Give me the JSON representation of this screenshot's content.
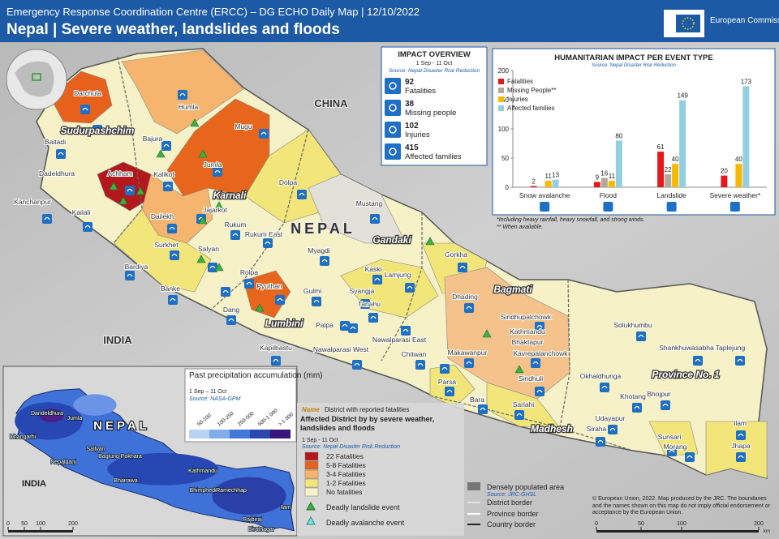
{
  "header": {
    "supertitle": "Emergency Response Coordination Centre (ERCC) – DG ECHO Daily Map | 12/10/2022",
    "title": "Nepal | Severe weather, landslides and floods",
    "logo_text": "European Commission"
  },
  "impact_overview": {
    "title": "IMPACT OVERVIEW",
    "period": "1 Sep - 11 Oct",
    "source": "Source: Nepal Disaster Risk Reduction",
    "items": [
      {
        "value": "92",
        "label": "Fatalities"
      },
      {
        "value": "38",
        "label": "Missing people"
      },
      {
        "value": "102",
        "label": "Injuries"
      },
      {
        "value": "415",
        "label": "Affected families"
      }
    ]
  },
  "chart_data": {
    "type": "bar",
    "title": "HUMANITARIAN IMPACT PER EVENT TYPE",
    "subtitle": "Source: Nepal Disaster Risk Reduction",
    "categories": [
      "Snow avalanche",
      "Flood",
      "Landslide",
      "Severe weather*"
    ],
    "series": [
      {
        "name": "Fatalities",
        "color": "#e3191c",
        "values": [
          2,
          9,
          61,
          20
        ]
      },
      {
        "name": "Missing People**",
        "color": "#b3a998",
        "values": [
          null,
          16,
          22,
          null
        ]
      },
      {
        "name": "Injuries",
        "color": "#f7b900",
        "values": [
          11,
          11,
          40,
          40
        ]
      },
      {
        "name": "Affected families",
        "color": "#92cfe0",
        "values": [
          13,
          80,
          149,
          173
        ]
      }
    ],
    "ylim": [
      0,
      200
    ],
    "yticks": [
      0,
      50,
      100,
      150,
      200
    ],
    "grid": false,
    "notes": [
      "*Including heavy rainfall, heavy snowfall, and strong winds.",
      "** When available."
    ]
  },
  "map": {
    "countries": [
      "CHINA",
      "NEPAL",
      "INDIA"
    ],
    "provinces": [
      "Sudurpashchim",
      "Karnali",
      "Gandaki",
      "Lumbini",
      "Bagmati",
      "Madhesh",
      "Province No. 1"
    ],
    "districts": [
      "Darchula",
      "Baitadi",
      "Dadeldhura",
      "Kanchanpur",
      "Kailali",
      "Achham",
      "Bajura",
      "Humla",
      "Mugu",
      "Jumla",
      "Kalikot",
      "Dolpa",
      "Dailekh",
      "Jajarkot",
      "Rukum",
      "Surkhet",
      "Salyan",
      "Rukum East",
      "Bardiya",
      "Banke",
      "Rolpa",
      "Pyuthan",
      "Dang",
      "Kapilbastu",
      "Palpa",
      "Gulmi",
      "Syangja",
      "Kaski",
      "Lamjung",
      "Myagdi",
      "Mustang",
      "Gorkha",
      "Tanahu",
      "Nawalparasi East",
      "Nawalparasi West",
      "Chitwan",
      "Parsa",
      "Makawanpur",
      "Dhading",
      "Sindhupalchowk",
      "Kathmandu",
      "Bhaktapur",
      "Kavrepalanchowk",
      "Sindhuli",
      "Sarlahi",
      "Bara",
      "Okhaldhunga",
      "Solukhumbu",
      "Shankhuwasabha",
      "Taplejung",
      "Bhojpur",
      "Khotang",
      "Udayapur",
      "Siraha",
      "Sunsari",
      "Morang",
      "Ilam",
      "Jhapa"
    ]
  },
  "inset": {
    "labels": [
      "NEPAL",
      "INDIA",
      "Dandeldhura",
      "Dhangarhi",
      "Jumla",
      "Sallyan",
      "Nepalganj",
      "Baglung Pokhara",
      "Kathmandu",
      "Bhairawa",
      "Bhimphedi",
      "Ramechhap",
      "Rajbiraj",
      "Biratnagar",
      "Ilam"
    ],
    "scale": [
      "0",
      "50",
      "100",
      "200"
    ],
    "legend_title": "Past precipitation accumulation (mm)",
    "legend_period": "1 Sep – 11 Oct",
    "legend_source": "Source: NASA-GPM",
    "classes": [
      "50-100",
      "100-250",
      "250-500",
      "500-1 000",
      "> 1 000"
    ]
  },
  "legend": {
    "name_sample": "Name",
    "fatalities_district": "District with reported fatalities",
    "affected_title": "Affected District by by severe weather, landslides and floods",
    "period": "1 Sep - 11 Oct",
    "source": "Source: Nepal Disaster Risk Reduction",
    "classes": [
      "22 Fatalities",
      "5-8 Fatalities",
      "3-4 Fatalities",
      "1-2 Fatalities",
      "No fatalities"
    ],
    "landslide": "Deadly landslide event",
    "avalanche": "Deadly avalanche event",
    "dense": "Densely populated area",
    "dense_source": "Source: JRC-GHSL",
    "district_border": "District border",
    "province_border": "Province border",
    "country_border": "Country border"
  },
  "footer": {
    "copyright": "© European Union, 2022. Map produced by the JRC. The boundaries and the names shown on this map do not imply official endorsement or acceptance by the European Union.",
    "scale": [
      "0",
      "50",
      "100",
      "200"
    ],
    "scale_unit": "km"
  }
}
